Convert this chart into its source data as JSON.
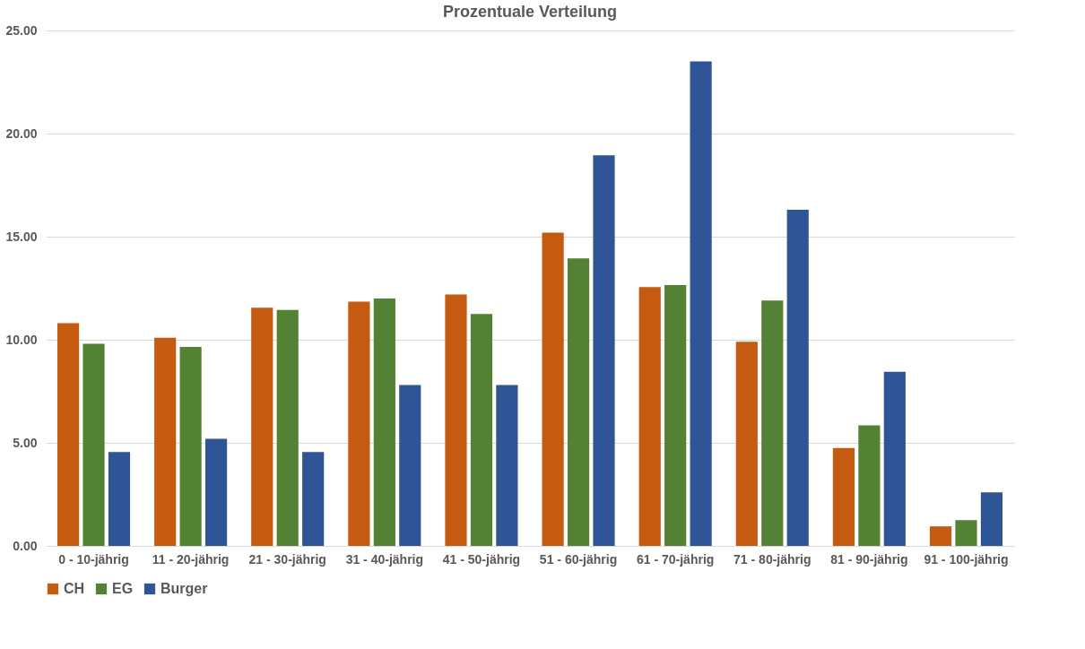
{
  "chart_data": {
    "type": "bar",
    "title": "Prozentuale Verteilung",
    "categories": [
      "0 - 10-jährig",
      "11 - 20-jährig",
      "21 - 30-jährig",
      "31 - 40-jährig",
      "41 - 50-jährig",
      "51 - 60-jährig",
      "61 - 70-jährig",
      "71 - 80-jährig",
      "81 - 90-jährig",
      "91 - 100-jährig"
    ],
    "series": [
      {
        "name": "CH",
        "color": "#c55a11",
        "values": [
          10.8,
          10.1,
          11.55,
          11.85,
          12.2,
          15.2,
          12.55,
          9.9,
          4.75,
          0.95
        ]
      },
      {
        "name": "EG",
        "color": "#548235",
        "values": [
          9.8,
          9.65,
          11.45,
          12.0,
          11.25,
          13.95,
          12.65,
          11.9,
          5.85,
          1.25
        ]
      },
      {
        "name": "Burger",
        "color": "#2f5597",
        "values": [
          4.55,
          5.2,
          4.55,
          7.8,
          7.8,
          18.95,
          23.5,
          16.3,
          8.45,
          2.6
        ]
      }
    ],
    "ylim": [
      0,
      25
    ],
    "yticks": [
      {
        "value": 0,
        "label": "0.00"
      },
      {
        "value": 5,
        "label": "5.00"
      },
      {
        "value": 10,
        "label": "10.00"
      },
      {
        "value": 15,
        "label": "15.00"
      },
      {
        "value": 20,
        "label": "20.00"
      },
      {
        "value": 25,
        "label": "25.00"
      }
    ],
    "grid": "y",
    "legend": "bottom"
  }
}
